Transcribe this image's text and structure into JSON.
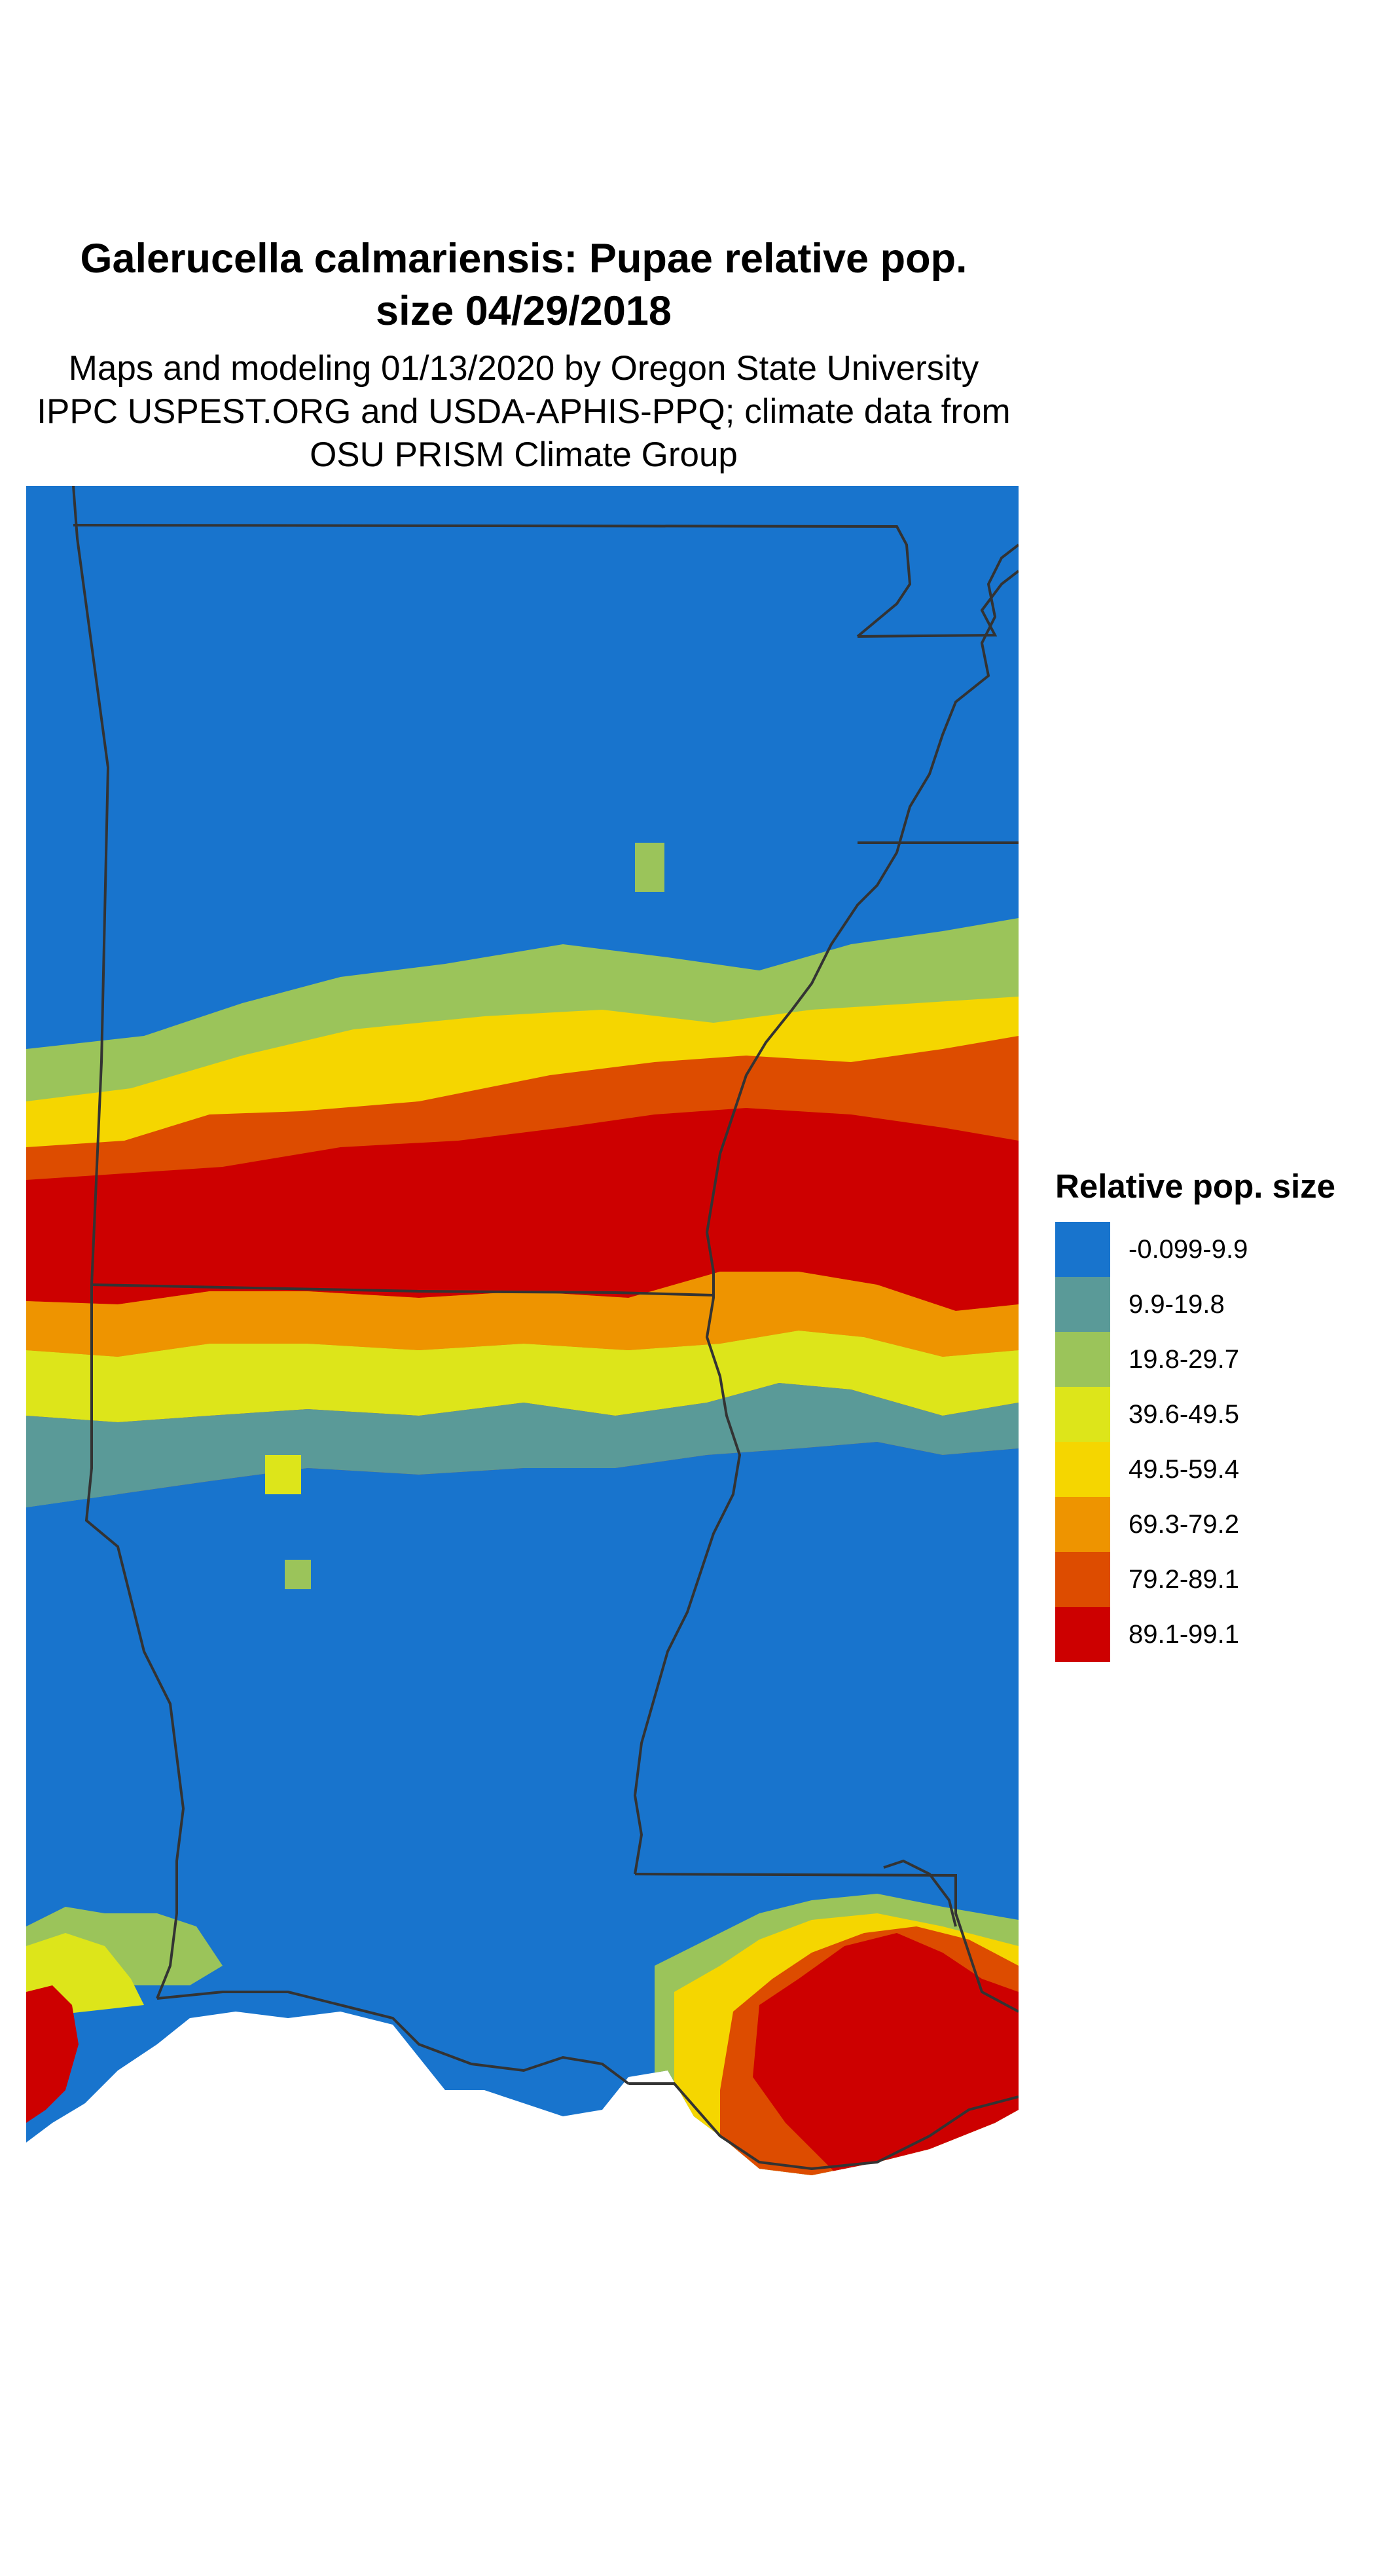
{
  "title": {
    "line1": "Galerucella calmariensis: Pupae relative pop.",
    "line2": "size 04/29/2018"
  },
  "subtitle": {
    "line1": "Maps and modeling 01/13/2020 by Oregon State University",
    "line2": "IPPC USPEST.ORG and USDA-APHIS-PPQ; climate data from",
    "line3": "OSU PRISM Climate Group"
  },
  "legend": {
    "title": "Relative pop. size",
    "items": [
      {
        "label": "-0.099-9.9",
        "color": "#1874cd"
      },
      {
        "label": "9.9-19.8",
        "color": "#5a9a98"
      },
      {
        "label": "19.8-29.7",
        "color": "#9bc45a"
      },
      {
        "label": "39.6-49.5",
        "color": "#dde51a"
      },
      {
        "label": "49.5-59.4",
        "color": "#f5d600"
      },
      {
        "label": "69.3-79.2",
        "color": "#ee9400"
      },
      {
        "label": "79.2-89.1",
        "color": "#dd4c00"
      },
      {
        "label": "89.1-99.1",
        "color": "#cd0000"
      }
    ]
  },
  "colors": {
    "background": "#ffffff",
    "state_border": "#333333"
  }
}
